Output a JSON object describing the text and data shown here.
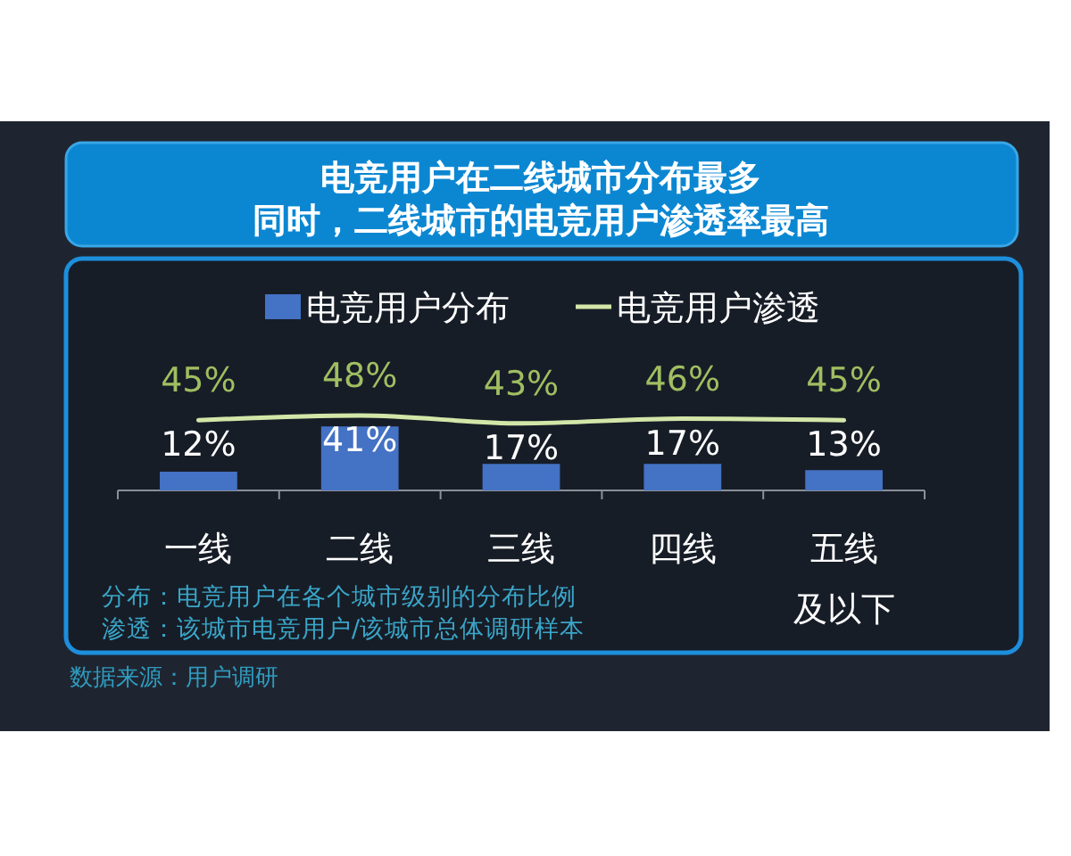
{
  "chart_data": {
    "type": "bar",
    "title": "电竞用户在二线城市分布最多",
    "subtitle": "同时，二线城市的电竞用户渗透率最高",
    "categories": [
      "一线",
      "二线",
      "三线",
      "四线",
      "五线及以下"
    ],
    "series": [
      {
        "name": "电竞用户分布",
        "color": "#4472c4",
        "values": [
          12,
          41,
          17,
          17,
          13
        ],
        "value_labels": [
          "12%",
          "41%",
          "17%",
          "17%",
          "13%"
        ]
      },
      {
        "name": "电竞用户渗透",
        "type": "line",
        "color": "#d2e6a8",
        "values": [
          45,
          48,
          43,
          46,
          45
        ],
        "value_labels": [
          "45%",
          "48%",
          "43%",
          "46%",
          "45%"
        ]
      }
    ],
    "tick_labels": "x",
    "legend": "top",
    "annotations": [
      "分布：电竞用户在各个城市级别的分布比例",
      "渗透：该城市电竞用户/该城市总体调研样本",
      "数据来源：用户调研"
    ]
  }
}
